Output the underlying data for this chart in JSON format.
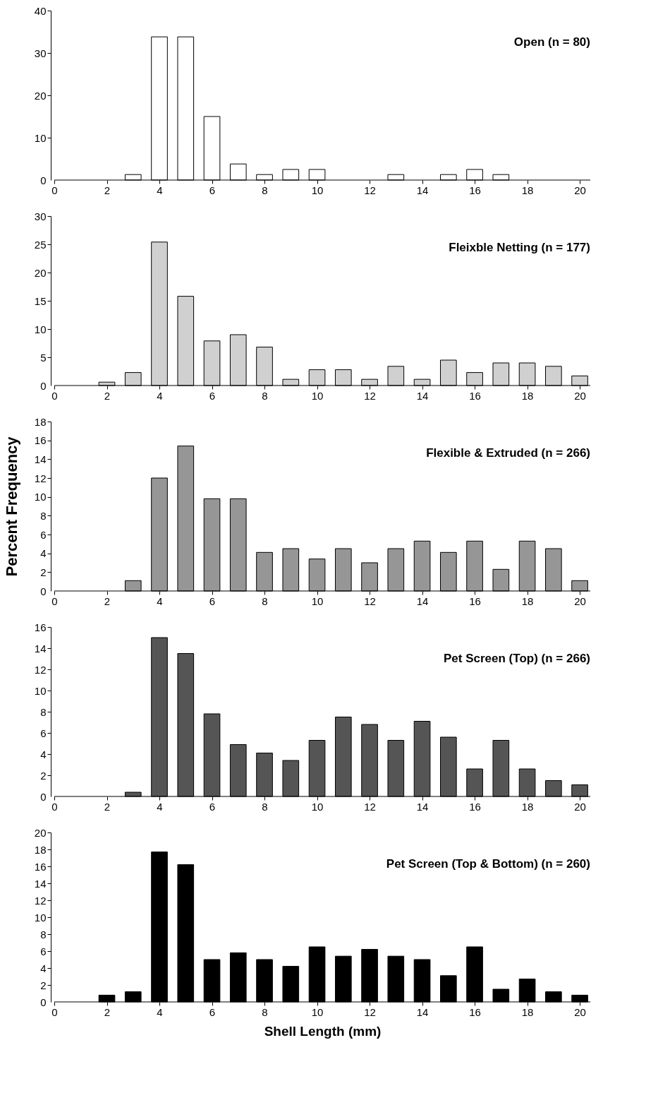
{
  "chart_data": [
    {
      "type": "bar",
      "annotations": [
        "Open (n = 80)"
      ],
      "color": "#ffffff",
      "x": [
        3,
        4,
        5,
        6,
        7,
        8,
        9,
        10,
        13,
        15,
        16,
        17
      ],
      "values": [
        1.3,
        33.8,
        33.8,
        15,
        3.8,
        1.3,
        2.5,
        2.5,
        1.3,
        1.3,
        2.5,
        1.3
      ],
      "xlim": [
        0,
        20.4
      ],
      "xticks": [
        0,
        2,
        4,
        6,
        8,
        10,
        12,
        14,
        16,
        18,
        20
      ],
      "ylim": [
        0,
        40
      ],
      "yticks": [
        0,
        10,
        20,
        30,
        40
      ]
    },
    {
      "type": "bar",
      "annotations": [
        "Fleixble Netting (n = 177)"
      ],
      "color": "#d0d0d0",
      "x": [
        2,
        3,
        4,
        5,
        6,
        7,
        8,
        9,
        10,
        11,
        12,
        13,
        14,
        15,
        16,
        17,
        18,
        19,
        20
      ],
      "values": [
        0.6,
        2.3,
        25.4,
        15.8,
        7.9,
        9.0,
        6.8,
        1.1,
        2.8,
        2.8,
        1.1,
        3.4,
        1.1,
        4.5,
        2.3,
        4.0,
        4.0,
        3.4,
        1.7
      ],
      "xlim": [
        0,
        20.4
      ],
      "xticks": [
        0,
        2,
        4,
        6,
        8,
        10,
        12,
        14,
        16,
        18,
        20
      ],
      "ylim": [
        0,
        30
      ],
      "yticks": [
        0,
        5,
        10,
        15,
        20,
        25,
        30
      ]
    },
    {
      "type": "bar",
      "annotations": [
        "Flexible & Extruded (n = 266)"
      ],
      "color": "#969696",
      "ylabel": "Percent Frequency",
      "x": [
        3,
        4,
        5,
        6,
        7,
        8,
        9,
        10,
        11,
        12,
        13,
        14,
        15,
        16,
        17,
        18,
        19,
        20
      ],
      "values": [
        1.1,
        12.0,
        15.4,
        9.8,
        9.8,
        4.1,
        4.5,
        3.4,
        4.5,
        3.0,
        4.5,
        5.3,
        4.1,
        5.3,
        2.3,
        5.3,
        4.5,
        1.1
      ],
      "xlim": [
        0,
        20.4
      ],
      "xticks": [
        0,
        2,
        4,
        6,
        8,
        10,
        12,
        14,
        16,
        18,
        20
      ],
      "ylim": [
        0,
        18
      ],
      "yticks": [
        0,
        2,
        4,
        6,
        8,
        10,
        12,
        14,
        16,
        18
      ]
    },
    {
      "type": "bar",
      "annotations": [
        "Pet Screen (Top) (n = 266)"
      ],
      "color": "#555555",
      "x": [
        3,
        4,
        5,
        6,
        7,
        8,
        9,
        10,
        11,
        12,
        13,
        14,
        15,
        16,
        17,
        18,
        19,
        20
      ],
      "values": [
        0.4,
        15.0,
        13.5,
        7.8,
        4.9,
        4.1,
        3.4,
        5.3,
        7.5,
        6.8,
        5.3,
        7.1,
        5.6,
        2.6,
        5.3,
        2.6,
        1.5,
        1.1
      ],
      "xlim": [
        0,
        20.4
      ],
      "xticks": [
        0,
        2,
        4,
        6,
        8,
        10,
        12,
        14,
        16,
        18,
        20
      ],
      "ylim": [
        0,
        16
      ],
      "yticks": [
        0,
        2,
        4,
        6,
        8,
        10,
        12,
        14,
        16
      ]
    },
    {
      "type": "bar",
      "annotations": [
        "Pet Screen (Top & Bottom) (n = 260)"
      ],
      "color": "#000000",
      "xlabel": "Shell Length (mm)",
      "x": [
        2,
        3,
        4,
        5,
        6,
        7,
        8,
        9,
        10,
        11,
        12,
        13,
        14,
        15,
        16,
        17,
        18,
        19,
        20
      ],
      "values": [
        0.8,
        1.2,
        17.7,
        16.2,
        5.0,
        5.8,
        5.0,
        4.2,
        6.5,
        5.4,
        6.2,
        5.4,
        5.0,
        3.1,
        6.5,
        1.5,
        2.7,
        1.2,
        0.8
      ],
      "xlim": [
        0,
        20.4
      ],
      "xticks": [
        0,
        2,
        4,
        6,
        8,
        10,
        12,
        14,
        16,
        18,
        20
      ],
      "ylim": [
        0,
        20
      ],
      "yticks": [
        0,
        2,
        4,
        6,
        8,
        10,
        12,
        14,
        16,
        18,
        20
      ]
    }
  ]
}
